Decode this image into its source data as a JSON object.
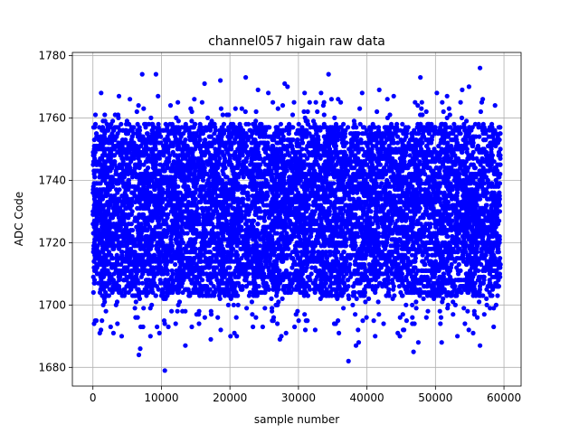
{
  "chart_data": {
    "type": "scatter",
    "title": "channel057 higain raw data",
    "xlabel": "sample number",
    "ylabel": "ADC Code",
    "xlim": [
      -3000,
      62500
    ],
    "ylim": [
      1674,
      1781
    ],
    "xticks": [
      0,
      10000,
      20000,
      30000,
      40000,
      50000,
      60000
    ],
    "xtick_labels": [
      "0",
      "10000",
      "20000",
      "30000",
      "40000",
      "50000",
      "60000"
    ],
    "yticks": [
      1680,
      1700,
      1720,
      1740,
      1760,
      1780
    ],
    "ytick_labels": [
      "1680",
      "1700",
      "1720",
      "1740",
      "1760",
      "1780"
    ],
    "grid": true,
    "marker_color": "#0000ff",
    "series": [
      {
        "x_range": [
          0,
          59500
        ],
        "dense_band": [
          1703,
          1758
        ],
        "points": [
          [
            7200,
            1774
          ],
          [
            9200,
            1774
          ],
          [
            22300,
            1773
          ],
          [
            34400,
            1774
          ],
          [
            56500,
            1776
          ],
          [
            10500,
            1679
          ],
          [
            37300,
            1682
          ],
          [
            6700,
            1684
          ],
          [
            6900,
            1686
          ],
          [
            13500,
            1687
          ],
          [
            38400,
            1687
          ],
          [
            38800,
            1688
          ],
          [
            46800,
            1685
          ],
          [
            47500,
            1688
          ],
          [
            50900,
            1688
          ],
          [
            56500,
            1687
          ],
          [
            27300,
            1689
          ],
          [
            27500,
            1690
          ],
          [
            1000,
            1691
          ],
          [
            17200,
            1689
          ],
          [
            44800,
            1690
          ],
          [
            9700,
            1691
          ],
          [
            500,
            1695
          ],
          [
            1500,
            1700
          ],
          [
            57500,
            1700
          ],
          [
            3000,
            1691
          ],
          [
            4200,
            1690
          ],
          [
            8400,
            1690
          ],
          [
            21000,
            1690
          ],
          [
            31000,
            1692
          ],
          [
            35900,
            1691
          ],
          [
            41200,
            1690
          ],
          [
            44500,
            1691
          ],
          [
            53200,
            1690
          ],
          [
            55500,
            1691
          ],
          [
            1200,
            1768
          ],
          [
            3800,
            1767
          ],
          [
            5400,
            1766
          ],
          [
            9500,
            1767
          ],
          [
            12400,
            1765
          ],
          [
            14800,
            1766
          ],
          [
            16300,
            1771
          ],
          [
            18600,
            1772
          ],
          [
            24100,
            1769
          ],
          [
            25600,
            1768
          ],
          [
            28000,
            1771
          ],
          [
            28400,
            1770
          ],
          [
            30900,
            1768
          ],
          [
            33300,
            1768
          ],
          [
            35800,
            1766
          ],
          [
            39300,
            1768
          ],
          [
            41800,
            1769
          ],
          [
            43900,
            1767
          ],
          [
            47800,
            1773
          ],
          [
            50200,
            1768
          ],
          [
            51700,
            1767
          ],
          [
            53900,
            1769
          ],
          [
            54900,
            1770
          ],
          [
            56900,
            1766
          ],
          [
            58700,
            1764
          ]
        ]
      }
    ]
  }
}
